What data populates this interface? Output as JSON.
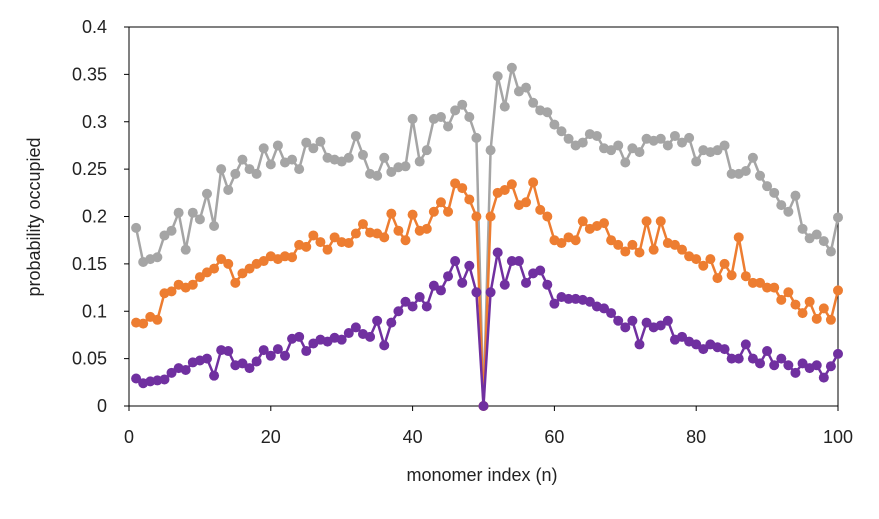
{
  "chart_data": {
    "type": "line",
    "title": "",
    "xlabel": "monomer index (n)",
    "ylabel": "probability occupied",
    "xlim": [
      0,
      100
    ],
    "ylim": [
      0,
      0.4
    ],
    "x_ticks": [
      0,
      20,
      40,
      60,
      80,
      100
    ],
    "y_ticks": [
      0,
      0.05,
      0.1,
      0.15,
      0.2,
      0.25,
      0.3,
      0.35,
      0.4
    ],
    "x_tick_labels": [
      "0",
      "20",
      "40",
      "60",
      "80",
      "100"
    ],
    "y_tick_labels": [
      "0",
      "0.05",
      "0.1",
      "0.15",
      "0.2",
      "0.25",
      "0.3",
      "0.35",
      "0.4"
    ],
    "grid": false,
    "legend": "none",
    "series": [
      {
        "name": "gray series",
        "color": "#a5a5a5",
        "x": [
          1,
          2,
          3,
          4,
          5,
          6,
          7,
          8,
          9,
          10,
          11,
          12,
          13,
          14,
          15,
          16,
          17,
          18,
          19,
          20,
          21,
          22,
          23,
          24,
          25,
          26,
          27,
          28,
          29,
          30,
          31,
          32,
          33,
          34,
          35,
          36,
          37,
          38,
          39,
          40,
          41,
          42,
          43,
          44,
          45,
          46,
          47,
          48,
          49,
          50,
          51,
          52,
          53,
          54,
          55,
          56,
          57,
          58,
          59,
          60,
          61,
          62,
          63,
          64,
          65,
          66,
          67,
          68,
          69,
          70,
          71,
          72,
          73,
          74,
          75,
          76,
          77,
          78,
          79,
          80,
          81,
          82,
          83,
          84,
          85,
          86,
          87,
          88,
          89,
          90,
          91,
          92,
          93,
          94,
          95,
          96,
          97,
          98,
          99,
          100
        ],
        "values": [
          0.188,
          0.152,
          0.155,
          0.157,
          0.18,
          0.185,
          0.204,
          0.165,
          0.204,
          0.197,
          0.224,
          0.19,
          0.25,
          0.228,
          0.245,
          0.26,
          0.25,
          0.245,
          0.272,
          0.255,
          0.275,
          0.257,
          0.26,
          0.25,
          0.278,
          0.272,
          0.279,
          0.262,
          0.26,
          0.258,
          0.262,
          0.285,
          0.265,
          0.245,
          0.243,
          0.262,
          0.247,
          0.252,
          0.253,
          0.303,
          0.258,
          0.27,
          0.303,
          0.305,
          0.295,
          0.312,
          0.318,
          0.305,
          0.283,
          0.0,
          0.27,
          0.348,
          0.316,
          0.357,
          0.332,
          0.336,
          0.32,
          0.312,
          0.31,
          0.297,
          0.29,
          0.282,
          0.275,
          0.278,
          0.287,
          0.285,
          0.272,
          0.27,
          0.275,
          0.257,
          0.272,
          0.268,
          0.282,
          0.28,
          0.282,
          0.275,
          0.285,
          0.278,
          0.283,
          0.258,
          0.27,
          0.268,
          0.27,
          0.275,
          0.245,
          0.245,
          0.248,
          0.262,
          0.243,
          0.232,
          0.225,
          0.212,
          0.205,
          0.222,
          0.187,
          0.177,
          0.181,
          0.174,
          0.163,
          0.199
        ]
      },
      {
        "name": "orange series",
        "color": "#ed7d31",
        "x": [
          1,
          2,
          3,
          4,
          5,
          6,
          7,
          8,
          9,
          10,
          11,
          12,
          13,
          14,
          15,
          16,
          17,
          18,
          19,
          20,
          21,
          22,
          23,
          24,
          25,
          26,
          27,
          28,
          29,
          30,
          31,
          32,
          33,
          34,
          35,
          36,
          37,
          38,
          39,
          40,
          41,
          42,
          43,
          44,
          45,
          46,
          47,
          48,
          49,
          50,
          51,
          52,
          53,
          54,
          55,
          56,
          57,
          58,
          59,
          60,
          61,
          62,
          63,
          64,
          65,
          66,
          67,
          68,
          69,
          70,
          71,
          72,
          73,
          74,
          75,
          76,
          77,
          78,
          79,
          80,
          81,
          82,
          83,
          84,
          85,
          86,
          87,
          88,
          89,
          90,
          91,
          92,
          93,
          94,
          95,
          96,
          97,
          98,
          99,
          100
        ],
        "values": [
          0.088,
          0.087,
          0.094,
          0.091,
          0.119,
          0.121,
          0.128,
          0.125,
          0.128,
          0.136,
          0.141,
          0.145,
          0.155,
          0.15,
          0.13,
          0.14,
          0.145,
          0.15,
          0.153,
          0.158,
          0.155,
          0.158,
          0.157,
          0.17,
          0.168,
          0.18,
          0.173,
          0.165,
          0.178,
          0.173,
          0.172,
          0.182,
          0.192,
          0.183,
          0.182,
          0.178,
          0.203,
          0.185,
          0.175,
          0.202,
          0.185,
          0.187,
          0.205,
          0.215,
          0.205,
          0.235,
          0.23,
          0.218,
          0.2,
          0.0,
          0.2,
          0.225,
          0.228,
          0.234,
          0.212,
          0.215,
          0.236,
          0.207,
          0.2,
          0.175,
          0.172,
          0.178,
          0.175,
          0.195,
          0.187,
          0.19,
          0.193,
          0.175,
          0.17,
          0.163,
          0.17,
          0.162,
          0.195,
          0.165,
          0.195,
          0.172,
          0.17,
          0.165,
          0.158,
          0.155,
          0.148,
          0.155,
          0.135,
          0.15,
          0.138,
          0.178,
          0.137,
          0.13,
          0.13,
          0.125,
          0.125,
          0.112,
          0.12,
          0.107,
          0.098,
          0.11,
          0.092,
          0.103,
          0.091,
          0.122
        ]
      },
      {
        "name": "purple series",
        "color": "#7030a0",
        "x": [
          1,
          2,
          3,
          4,
          5,
          6,
          7,
          8,
          9,
          10,
          11,
          12,
          13,
          14,
          15,
          16,
          17,
          18,
          19,
          20,
          21,
          22,
          23,
          24,
          25,
          26,
          27,
          28,
          29,
          30,
          31,
          32,
          33,
          34,
          35,
          36,
          37,
          38,
          39,
          40,
          41,
          42,
          43,
          44,
          45,
          46,
          47,
          48,
          49,
          50,
          51,
          52,
          53,
          54,
          55,
          56,
          57,
          58,
          59,
          60,
          61,
          62,
          63,
          64,
          65,
          66,
          67,
          68,
          69,
          70,
          71,
          72,
          73,
          74,
          75,
          76,
          77,
          78,
          79,
          80,
          81,
          82,
          83,
          84,
          85,
          86,
          87,
          88,
          89,
          90,
          91,
          92,
          93,
          94,
          95,
          96,
          97,
          98,
          99,
          100
        ],
        "values": [
          0.029,
          0.024,
          0.026,
          0.027,
          0.028,
          0.035,
          0.04,
          0.038,
          0.046,
          0.048,
          0.05,
          0.032,
          0.059,
          0.058,
          0.043,
          0.045,
          0.04,
          0.047,
          0.059,
          0.053,
          0.06,
          0.053,
          0.071,
          0.073,
          0.058,
          0.066,
          0.07,
          0.068,
          0.072,
          0.07,
          0.077,
          0.083,
          0.076,
          0.073,
          0.09,
          0.064,
          0.088,
          0.1,
          0.11,
          0.105,
          0.115,
          0.105,
          0.127,
          0.122,
          0.137,
          0.153,
          0.13,
          0.148,
          0.12,
          0.0,
          0.12,
          0.162,
          0.128,
          0.153,
          0.153,
          0.13,
          0.14,
          0.143,
          0.128,
          0.108,
          0.115,
          0.113,
          0.113,
          0.112,
          0.11,
          0.105,
          0.103,
          0.098,
          0.09,
          0.083,
          0.09,
          0.065,
          0.088,
          0.083,
          0.085,
          0.09,
          0.07,
          0.073,
          0.068,
          0.065,
          0.06,
          0.065,
          0.062,
          0.06,
          0.05,
          0.05,
          0.065,
          0.05,
          0.045,
          0.058,
          0.043,
          0.05,
          0.043,
          0.035,
          0.045,
          0.04,
          0.043,
          0.03,
          0.042,
          0.055
        ]
      }
    ]
  }
}
